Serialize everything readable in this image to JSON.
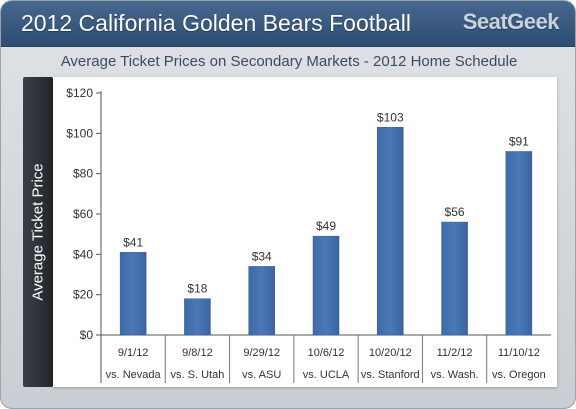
{
  "header": {
    "title": "2012 California Golden Bears Football",
    "brand": "SeatGeek"
  },
  "chart_data": {
    "type": "bar",
    "title": "Average Ticket Prices on Secondary Markets - 2012 Home Schedule",
    "ylabel": "Average Ticket Price",
    "xlabel": "",
    "ylim": [
      0,
      120
    ],
    "yticks": [
      "$0",
      "$20",
      "$40",
      "$60",
      "$80",
      "$100",
      "$120"
    ],
    "ytick_values": [
      0,
      20,
      40,
      60,
      80,
      100,
      120
    ],
    "grid": false,
    "categories": [
      {
        "date": "9/1/12",
        "opponent": "vs. Nevada"
      },
      {
        "date": "9/8/12",
        "opponent": "vs. S. Utah"
      },
      {
        "date": "9/29/12",
        "opponent": "vs. ASU"
      },
      {
        "date": "10/6/12",
        "opponent": "vs. UCLA"
      },
      {
        "date": "10/20/12",
        "opponent": "vs. Stanford"
      },
      {
        "date": "11/2/12",
        "opponent": "vs. Wash."
      },
      {
        "date": "11/10/12",
        "opponent": "vs. Oregon"
      }
    ],
    "values": [
      41,
      18,
      34,
      49,
      103,
      56,
      91
    ],
    "value_labels": [
      "$41",
      "$18",
      "$34",
      "$49",
      "$103",
      "$56",
      "$91"
    ],
    "bar_color": "#4a78b8"
  }
}
